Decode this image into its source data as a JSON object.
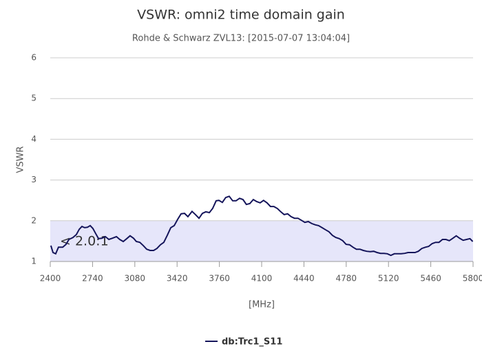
{
  "chart_data": {
    "type": "line",
    "title": "VSWR: omni2 time domain gain",
    "subtitle": "Rohde & Schwarz ZVL13: [2015-07-07 13:04:04]",
    "x_label": "[MHz]",
    "y_label": "VSWR",
    "xlim": [
      2400,
      5800
    ],
    "xticks": [
      2400,
      2740,
      3080,
      3420,
      3760,
      4100,
      4440,
      4780,
      5120,
      5460,
      5800
    ],
    "ylim": [
      1,
      6
    ],
    "yticks": [
      1,
      2,
      3,
      4,
      5,
      6
    ],
    "grid": true,
    "band": {
      "from": 1,
      "to": 2,
      "label": "< 2.0:1",
      "color": "#e6e6fa"
    },
    "x": [
      2405,
      2422,
      2444,
      2466,
      2500,
      2527,
      2550,
      2583,
      2610,
      2633,
      2655,
      2677,
      2699,
      2721,
      2743,
      2766,
      2788,
      2815,
      2843,
      2871,
      2898,
      2932,
      2959,
      2987,
      3015,
      3042,
      3070,
      3092,
      3120,
      3148,
      3175,
      3203,
      3231,
      3258,
      3286,
      3313,
      3341,
      3369,
      3397,
      3424,
      3452,
      3480,
      3507,
      3540,
      3568,
      3596,
      3624,
      3651,
      3679,
      3706,
      3734,
      3756,
      3784,
      3811,
      3839,
      3867,
      3894,
      3922,
      3950,
      3977,
      4005,
      4033,
      4060,
      4088,
      4115,
      4143,
      4171,
      4198,
      4226,
      4254,
      4281,
      4309,
      4337,
      4364,
      4392,
      4420,
      4447,
      4475,
      4503,
      4530,
      4558,
      4586,
      4613,
      4641,
      4669,
      4696,
      4724,
      4752,
      4779,
      4807,
      4835,
      4862,
      4890,
      4918,
      4945,
      4973,
      5001,
      5028,
      5056,
      5084,
      5111,
      5139,
      5167,
      5194,
      5222,
      5250,
      5277,
      5305,
      5333,
      5360,
      5388,
      5416,
      5443,
      5471,
      5499,
      5526,
      5554,
      5582,
      5609,
      5637,
      5665,
      5692,
      5720,
      5748,
      5775,
      5798
    ],
    "series": [
      {
        "name": "db:Trc1_S11",
        "color": "#14145a",
        "values": [
          1.39,
          1.22,
          1.19,
          1.35,
          1.35,
          1.42,
          1.54,
          1.59,
          1.66,
          1.79,
          1.86,
          1.83,
          1.84,
          1.88,
          1.81,
          1.68,
          1.56,
          1.57,
          1.61,
          1.54,
          1.57,
          1.61,
          1.54,
          1.49,
          1.56,
          1.63,
          1.57,
          1.49,
          1.47,
          1.39,
          1.3,
          1.27,
          1.27,
          1.32,
          1.41,
          1.47,
          1.64,
          1.83,
          1.88,
          2.03,
          2.17,
          2.18,
          2.1,
          2.23,
          2.15,
          2.06,
          2.18,
          2.22,
          2.2,
          2.3,
          2.49,
          2.5,
          2.45,
          2.57,
          2.6,
          2.49,
          2.49,
          2.55,
          2.52,
          2.4,
          2.42,
          2.52,
          2.47,
          2.44,
          2.5,
          2.44,
          2.35,
          2.35,
          2.3,
          2.22,
          2.15,
          2.17,
          2.1,
          2.06,
          2.06,
          2.01,
          1.96,
          1.98,
          1.93,
          1.9,
          1.88,
          1.83,
          1.78,
          1.73,
          1.64,
          1.59,
          1.56,
          1.51,
          1.42,
          1.41,
          1.35,
          1.3,
          1.3,
          1.27,
          1.25,
          1.24,
          1.25,
          1.22,
          1.2,
          1.2,
          1.19,
          1.15,
          1.19,
          1.19,
          1.19,
          1.2,
          1.22,
          1.22,
          1.22,
          1.25,
          1.32,
          1.35,
          1.37,
          1.44,
          1.47,
          1.47,
          1.54,
          1.54,
          1.51,
          1.57,
          1.63,
          1.57,
          1.52,
          1.54,
          1.56,
          1.49
        ]
      }
    ]
  }
}
